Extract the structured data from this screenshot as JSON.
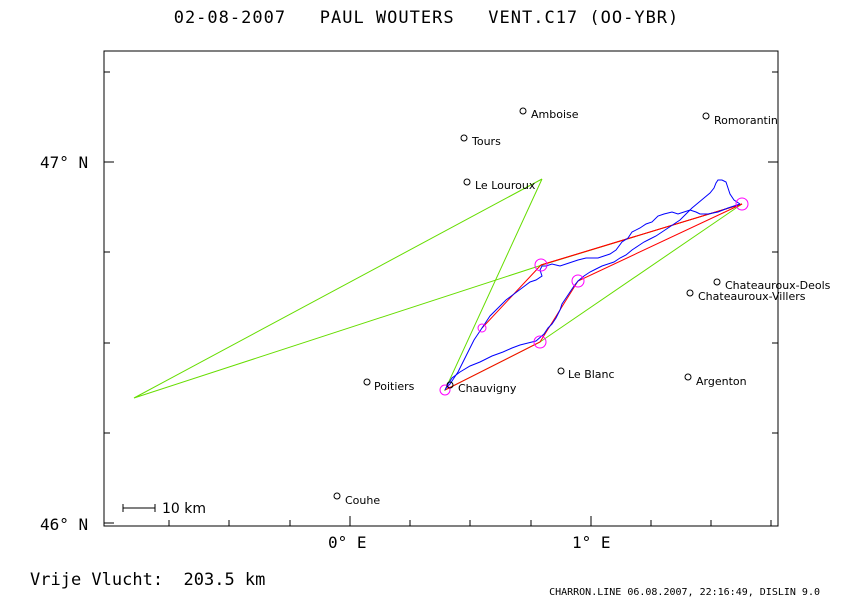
{
  "header": {
    "title": "02-08-2007   PAUL WOUTERS   VENT.C17 (OO-YBR)"
  },
  "map": {
    "axes": {
      "lat_labels": [
        "47° N",
        "46° N"
      ],
      "lon_labels": [
        "0° E",
        "1° E"
      ]
    },
    "scale_bar": {
      "label": "10 km"
    },
    "towns": [
      {
        "name": "Amboise"
      },
      {
        "name": "Romorantin"
      },
      {
        "name": "Tours"
      },
      {
        "name": "Le Louroux"
      },
      {
        "name": "Chateauroux-Deols"
      },
      {
        "name": "Chateauroux-Villers"
      },
      {
        "name": "Poitiers"
      },
      {
        "name": "Chauvigny"
      },
      {
        "name": "Le Blanc"
      },
      {
        "name": "Argenton"
      },
      {
        "name": "Couhe"
      }
    ],
    "colors": {
      "frame": "#000000",
      "gps_track": "#0000ff",
      "task_legs": "#ff0000",
      "alternative_legs": "#66dd00",
      "turnpoints": "#ff00ff"
    }
  },
  "footer": {
    "result": "Vrije Vlucht:  203.5 km",
    "credits": "CHARRON.LINE 06.08.2007, 22:16:49, DISLIN 9.0"
  }
}
